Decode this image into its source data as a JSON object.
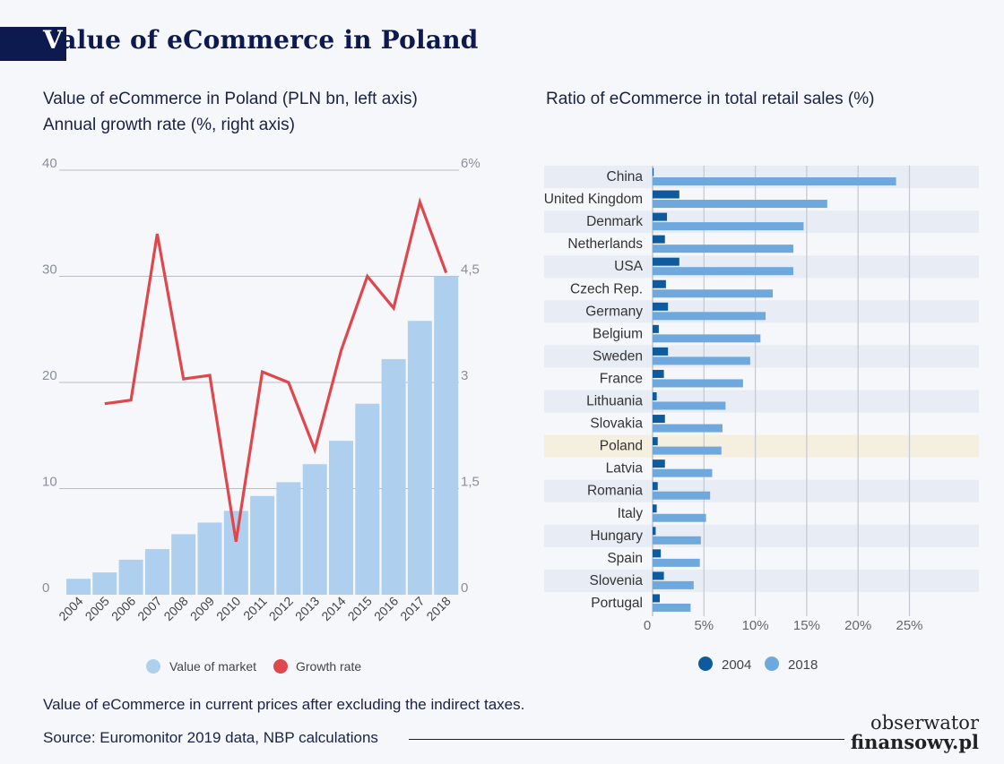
{
  "header": {
    "title_first": "V",
    "title_rest": "alue of eCommerce in Poland"
  },
  "left_panel": {
    "subtitle1": "Value of eCommerce in Poland (PLN bn, left axis)",
    "subtitle2": "Annual growth rate (%, right axis)"
  },
  "right_panel": {
    "subtitle": "Ratio of eCommerce in total retail sales (%)"
  },
  "footer": {
    "note": "Value of eCommerce in current prices after excluding the indirect taxes.",
    "source": "Source: Euromonitor 2019 data, NBP calculations"
  },
  "logo": {
    "line1": "obserwator",
    "line2": "finansowy.pl"
  },
  "colors": {
    "bar_light": "#aecfee",
    "growth_line": "#e0474c",
    "series_2004": "#0e5a9c",
    "series_2018": "#6ea8dc",
    "stripe": "#e8edf5",
    "highlight": "#f5efdf",
    "gridline": "#b8bcc6"
  },
  "chart_data": [
    {
      "type": "bar",
      "categories": [
        "2004",
        "2005",
        "2006",
        "2007",
        "2008",
        "2009",
        "2010",
        "2011",
        "2012",
        "2013",
        "2014",
        "2015",
        "2016",
        "2017",
        "2018"
      ],
      "series": [
        {
          "name": "Value of market",
          "axis": "left",
          "values": [
            1.5,
            2.1,
            3.3,
            4.3,
            5.7,
            6.8,
            7.9,
            9.3,
            10.6,
            12.3,
            14.5,
            18.0,
            22.2,
            25.8,
            30.0
          ]
        },
        {
          "name": "Growth rate",
          "axis": "right",
          "type": "line",
          "values": [
            null,
            2.7,
            2.75,
            5.1,
            3.05,
            3.1,
            0.75,
            3.15,
            3.0,
            2.05,
            3.45,
            4.5,
            4.05,
            5.55,
            4.55
          ]
        }
      ],
      "y_left": {
        "ylim": [
          0,
          40
        ],
        "ticks": [
          "0",
          "10",
          "20",
          "30",
          "40"
        ]
      },
      "y_right": {
        "ylim": [
          0,
          6
        ],
        "ticks": [
          "0",
          "1,5",
          "3",
          "4,5",
          "6%"
        ]
      },
      "legend": [
        "Value of market",
        "Growth rate"
      ],
      "legend_position": "bottom",
      "grid": true
    },
    {
      "type": "bar",
      "orientation": "horizontal",
      "categories": [
        "China",
        "United Kingdom",
        "Denmark",
        "Netherlands",
        "USA",
        "Czech Rep.",
        "Germany",
        "Belgium",
        "Sweden",
        "France",
        "Lithuania",
        "Slovakia",
        "Poland",
        "Latvia",
        "Romania",
        "Italy",
        "Hungary",
        "Spain",
        "Slovenia",
        "Portugal"
      ],
      "highlight": "Poland",
      "series": [
        {
          "name": "2004",
          "values": [
            0.1,
            2.6,
            1.4,
            1.2,
            2.6,
            1.3,
            1.5,
            0.6,
            1.5,
            1.1,
            0.4,
            1.2,
            0.5,
            1.2,
            0.5,
            0.4,
            0.3,
            0.8,
            1.1,
            0.7
          ]
        },
        {
          "name": "2018",
          "values": [
            23.7,
            17.0,
            14.7,
            13.7,
            13.7,
            11.7,
            11.0,
            10.5,
            9.5,
            8.8,
            7.1,
            6.8,
            6.7,
            5.8,
            5.6,
            5.2,
            4.7,
            4.6,
            4.0,
            3.7
          ]
        }
      ],
      "xlim": [
        0,
        25
      ],
      "ticks": [
        "0",
        "5%",
        "10%",
        "15%",
        "20%",
        "25%"
      ],
      "legend": [
        "2004",
        "2018"
      ],
      "legend_position": "bottom",
      "grid": true
    }
  ]
}
